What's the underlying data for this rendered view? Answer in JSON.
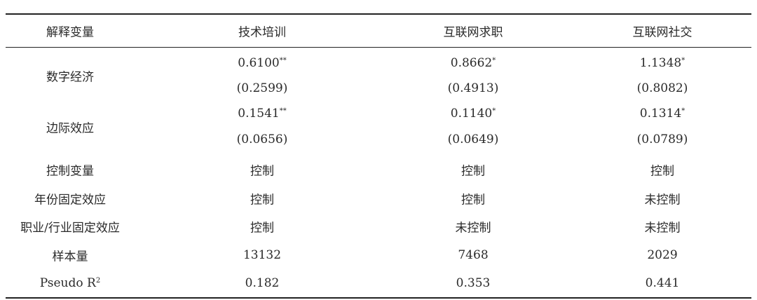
{
  "table": {
    "header": [
      "解释变量",
      "技术培训",
      "互联网求职",
      "互联网社交"
    ],
    "groups": [
      {
        "label": "数字经济",
        "estimates": [
          {
            "text": "0.6100",
            "sup": "**"
          },
          {
            "text": "0.8662",
            "sup": "*"
          },
          {
            "text": "1.1348",
            "sup": "*"
          }
        ],
        "std_errors": [
          "(0.2599)",
          "(0.4913)",
          "(0.8082)"
        ]
      },
      {
        "label": "边际效应",
        "estimates": [
          {
            "text": "0.1541",
            "sup": "**"
          },
          {
            "text": "0.1140",
            "sup": "*"
          },
          {
            "text": "0.1314",
            "sup": "*"
          }
        ],
        "std_errors": [
          "(0.0656)",
          "(0.0649)",
          "(0.0789)"
        ]
      }
    ],
    "rows": [
      {
        "label": "控制变量",
        "cells": [
          "控制",
          "控制",
          "控制"
        ]
      },
      {
        "label": "年份固定效应",
        "cells": [
          "控制",
          "控制",
          "未控制"
        ]
      },
      {
        "label": "职业/行业固定效应",
        "cells": [
          "控制",
          "未控制",
          "未控制"
        ]
      },
      {
        "label": "样本量",
        "cells": [
          "13132",
          "7468",
          "2029"
        ]
      },
      {
        "label": "Pseudo R",
        "label_sup": "2",
        "cells": [
          "0.182",
          "0.353",
          "0.441"
        ]
      }
    ]
  }
}
